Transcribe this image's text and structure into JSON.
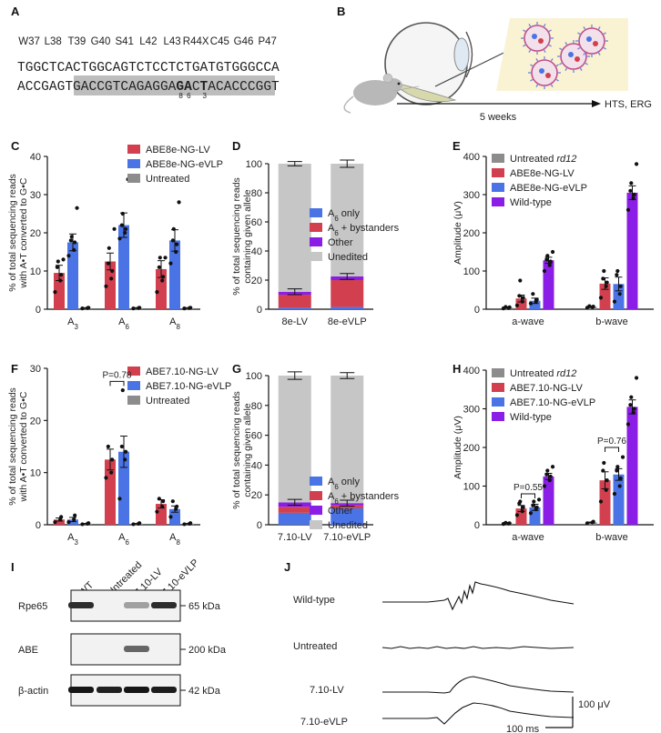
{
  "figure": {
    "panel_labels": [
      "A",
      "B",
      "C",
      "D",
      "E",
      "F",
      "G",
      "H",
      "I",
      "J"
    ]
  },
  "colors": {
    "lv": "#d2404f",
    "evlp": "#4a73e6",
    "untreated": "#8c8c8c",
    "wildtype": "#8a1ee6",
    "other": "#8a1ee6",
    "unedited": "#c6c6c6",
    "highlight": "#bdbdbd"
  },
  "panel_a": {
    "codons": [
      "W37",
      "L38",
      "T39",
      "G40",
      "S41",
      "L42",
      "L43",
      "R44X",
      "C45",
      "G46",
      "P47"
    ],
    "mutant_codon": "R44X",
    "top_strand": "TGGCTCACTGGCAGTCTCCTCTGATGTGGGCCA",
    "top_strand_mut_index": 22,
    "bottom_strand": "ACCGAGTGACCGTCAGAGGAGACTACACCCGGT",
    "bottom_pam_range": [
      4,
      7
    ],
    "bottom_target_A": 21,
    "subscripts": [
      {
        "index": 20,
        "text": "8"
      },
      {
        "index": 21,
        "text": "6"
      },
      {
        "index": 23,
        "text": "3"
      }
    ]
  },
  "panel_b": {
    "timeline_label": "5 weeks",
    "endpoint_label": "HTS, ERG"
  },
  "panel_c": {
    "ylabel_lines": [
      "% of total sequencing reads",
      "with A•T converted to G•C"
    ],
    "ylim": [
      0,
      40
    ],
    "ticks": [
      0,
      10,
      20,
      30,
      40
    ],
    "categories": [
      "A3",
      "A6",
      "A8"
    ],
    "legend": [
      "ABE8e-NG-LV",
      "ABE8e-NG-eVLP",
      "Untreated"
    ],
    "chart_data": {
      "type": "bar",
      "ylabel": "% of total sequencing reads with A•T converted to G•C",
      "categories": [
        "A3",
        "A6",
        "A8"
      ],
      "ylim": [
        0,
        40
      ],
      "series": [
        {
          "name": "ABE8e-NG-LV",
          "values": [
            9.5,
            12.5,
            10.5
          ],
          "errors": [
            2.0,
            2.2,
            2.2
          ]
        },
        {
          "name": "ABE8e-NG-eVLP",
          "values": [
            17.5,
            22.0,
            18.0
          ],
          "errors": [
            2.2,
            3.2,
            2.8
          ]
        },
        {
          "name": "Untreated",
          "values": [
            0.3,
            0.3,
            0.3
          ],
          "errors": [
            0.1,
            0.1,
            0.1
          ]
        }
      ],
      "points": [
        [
          [
            4.5,
            7.5,
            9,
            11,
            12.5,
            13
          ],
          [
            14,
            15.5,
            17.5,
            18,
            19,
            26.5
          ],
          [
            0.2,
            0.3,
            0.4
          ]
        ],
        [
          [
            6,
            8,
            10,
            12,
            16,
            21
          ],
          [
            18.5,
            20,
            21,
            22,
            25,
            34
          ],
          [
            0.2,
            0.3,
            0.4
          ]
        ],
        [
          [
            4.5,
            7.5,
            8.5,
            11,
            13.5,
            13.5
          ],
          [
            12,
            15,
            17,
            18,
            21,
            28
          ],
          [
            0.2,
            0.3,
            0.4
          ]
        ]
      ]
    }
  },
  "panel_d": {
    "ylabel_lines": [
      "% of total sequencing reads",
      "containing given allele"
    ],
    "ylim": [
      0,
      100
    ],
    "ticks": [
      0,
      20,
      40,
      60,
      80,
      100
    ],
    "categories": [
      "8e-LV",
      "8e-eVLP"
    ],
    "legend": [
      "A6 only",
      "A6 + bystanders",
      "Other",
      "Unedited"
    ],
    "chart_data": {
      "type": "bar",
      "stacked": true,
      "ylabel": "% of total sequencing reads containing given allele",
      "categories": [
        "8e-LV",
        "8e-eVLP"
      ],
      "ylim": [
        0,
        100
      ],
      "series": [
        {
          "name": "A6 only",
          "values": [
            1.0,
            1.5
          ]
        },
        {
          "name": "A6 + bystanders",
          "values": [
            9.0,
            18.5
          ]
        },
        {
          "name": "Other",
          "values": [
            2.0,
            2.5
          ]
        },
        {
          "name": "Unedited",
          "values": [
            88.0,
            77.5
          ]
        }
      ],
      "errors_total": [
        1.5,
        2.5
      ]
    }
  },
  "panel_e": {
    "ylabel": "Amplitude (μV)",
    "ylim": [
      0,
      400
    ],
    "ticks": [
      0,
      100,
      200,
      300,
      400
    ],
    "categories": [
      "a-wave",
      "b-wave"
    ],
    "legend": [
      "Untreated rd12",
      "ABE8e-NG-LV",
      "ABE8e-NG-eVLP",
      "Wild-type"
    ],
    "chart_data": {
      "type": "bar",
      "ylabel": "Amplitude (μV)",
      "categories": [
        "a-wave",
        "b-wave"
      ],
      "ylim": [
        0,
        400
      ],
      "series": [
        {
          "name": "Untreated rd12",
          "values": [
            4,
            6
          ],
          "errors": [
            1,
            1
          ]
        },
        {
          "name": "ABE8e-NG-LV",
          "values": [
            28,
            67
          ],
          "errors": [
            9,
            15
          ]
        },
        {
          "name": "ABE8e-NG-eVLP",
          "values": [
            22,
            66
          ],
          "errors": [
            7,
            18
          ]
        },
        {
          "name": "Wild-type",
          "values": [
            128,
            305
          ],
          "errors": [
            8,
            18
          ]
        }
      ],
      "points": [
        [
          [
            2,
            3,
            5,
            6
          ],
          [
            10,
            20,
            30,
            35,
            75
          ],
          [
            15,
            20,
            25,
            40
          ],
          [
            100,
            115,
            125,
            130,
            140,
            150
          ]
        ],
        [
          [
            4,
            5,
            7,
            8
          ],
          [
            30,
            60,
            70,
            80,
            100
          ],
          [
            20,
            40,
            60,
            90,
            100
          ],
          [
            260,
            290,
            300,
            310,
            330,
            380
          ]
        ]
      ]
    }
  },
  "panel_f": {
    "ylabel_lines": [
      "% of total sequencing reads",
      "with A•T converted to G•C"
    ],
    "ylim": [
      0,
      30
    ],
    "ticks": [
      0,
      10,
      20,
      30
    ],
    "categories": [
      "A3",
      "A6",
      "A8"
    ],
    "legend": [
      "ABE7.10-NG-LV",
      "ABE7.10-NG-eVLP",
      "Untreated"
    ],
    "pvalue": "P=0.78",
    "chart_data": {
      "type": "bar",
      "ylabel": "% of total sequencing reads with A•T converted to G•C",
      "categories": [
        "A3",
        "A6",
        "A8"
      ],
      "ylim": [
        0,
        30
      ],
      "series": [
        {
          "name": "ABE7.10-NG-LV",
          "values": [
            1.0,
            12.5,
            4.0
          ],
          "errors": [
            0.3,
            2.0,
            0.8
          ]
        },
        {
          "name": "ABE7.10-NG-eVLP",
          "values": [
            1.0,
            14.0,
            3.0
          ],
          "errors": [
            0.4,
            3.0,
            0.6
          ]
        },
        {
          "name": "Untreated",
          "values": [
            0.2,
            0.2,
            0.2
          ],
          "errors": [
            0.05,
            0.05,
            0.05
          ]
        }
      ],
      "points": [
        [
          [
            0.5,
            1.0,
            1.5
          ],
          [
            0.5,
            1.0,
            1.8
          ],
          [
            0.1,
            0.2,
            0.3
          ]
        ],
        [
          [
            9,
            10,
            12.5,
            15
          ],
          [
            5,
            12.5,
            14,
            15,
            25.8
          ],
          [
            0.1,
            0.2,
            0.3
          ]
        ],
        [
          [
            2.5,
            3.5,
            4.5,
            5
          ],
          [
            1.5,
            3,
            3.5,
            4.5
          ],
          [
            0.1,
            0.2,
            0.3
          ]
        ]
      ]
    }
  },
  "panel_g": {
    "ylabel_lines": [
      "% of total sequencing reads",
      "containing given allele"
    ],
    "ylim": [
      0,
      100
    ],
    "ticks": [
      0,
      20,
      40,
      60,
      80,
      100
    ],
    "categories": [
      "7.10-LV",
      "7.10-eVLP"
    ],
    "legend": [
      "A6 only",
      "A6 + bystanders",
      "Other",
      "Unedited"
    ],
    "chart_data": {
      "type": "bar",
      "stacked": true,
      "ylabel": "% of total sequencing reads containing given allele",
      "categories": [
        "7.10-LV",
        "7.10-eVLP"
      ],
      "ylim": [
        0,
        100
      ],
      "series": [
        {
          "name": "A6 only",
          "values": [
            8.0,
            11.0
          ]
        },
        {
          "name": "A6 + bystanders",
          "values": [
            4.0,
            2.0
          ]
        },
        {
          "name": "Other",
          "values": [
            3.0,
            1.5
          ]
        },
        {
          "name": "Unedited",
          "values": [
            85.0,
            85.5
          ]
        }
      ],
      "errors_total": [
        2.5,
        2.0
      ]
    }
  },
  "panel_h": {
    "ylabel": "Amplitude (μV)",
    "ylim": [
      0,
      400
    ],
    "ticks": [
      0,
      100,
      200,
      300,
      400
    ],
    "categories": [
      "a-wave",
      "b-wave"
    ],
    "legend": [
      "Untreated rd12",
      "ABE7.10-NG-LV",
      "ABE7.10-NG-eVLP",
      "Wild-type"
    ],
    "pvalues": [
      "P=0.55",
      "P=0.76"
    ],
    "chart_data": {
      "type": "bar",
      "ylabel": "Amplitude (μV)",
      "categories": [
        "a-wave",
        "b-wave"
      ],
      "ylim": [
        0,
        400
      ],
      "series": [
        {
          "name": "Untreated rd12",
          "values": [
            3,
            6
          ],
          "errors": [
            1,
            1
          ]
        },
        {
          "name": "ABE7.10-NG-LV",
          "values": [
            42,
            115
          ],
          "errors": [
            8,
            22
          ]
        },
        {
          "name": "ABE7.10-NG-eVLP",
          "values": [
            45,
            130
          ],
          "errors": [
            8,
            15
          ]
        },
        {
          "name": "Wild-type",
          "values": [
            125,
            305
          ],
          "errors": [
            8,
            18
          ]
        }
      ],
      "points": [
        [
          [
            2,
            3,
            4,
            5
          ],
          [
            25,
            35,
            45,
            55,
            60
          ],
          [
            30,
            40,
            45,
            50,
            60,
            65
          ],
          [
            100,
            115,
            125,
            130,
            140,
            150
          ]
        ],
        [
          [
            4,
            6,
            8
          ],
          [
            60,
            90,
            115,
            140,
            160
          ],
          [
            80,
            100,
            120,
            140,
            150,
            175
          ],
          [
            260,
            290,
            300,
            310,
            330,
            380
          ]
        ]
      ]
    }
  },
  "panel_i": {
    "lanes": [
      "WT",
      "Untreated",
      "7.10-LV",
      "7.10-eVLP"
    ],
    "rows": [
      {
        "name": "Rpe65",
        "size": "65 kDa"
      },
      {
        "name": "ABE",
        "size": "200 kDa"
      },
      {
        "name": "β-actin",
        "size": "42 kDa"
      }
    ]
  },
  "panel_j": {
    "traces": [
      "Wild-type",
      "Untreated",
      "7.10-LV",
      "7.10-eVLP"
    ],
    "scale_y": "100 μV",
    "scale_x": "100 ms"
  }
}
